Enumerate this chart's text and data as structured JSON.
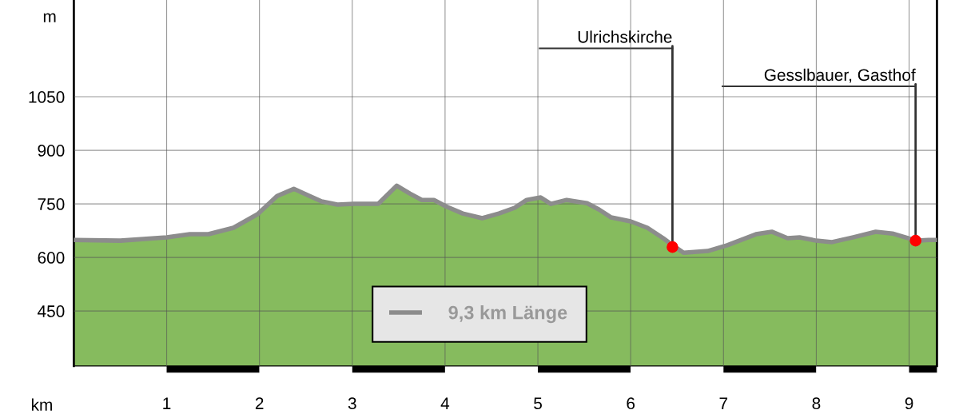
{
  "chart_data": {
    "type": "area",
    "xlabel": "km",
    "ylabel": "m",
    "xlim": [
      0,
      9.3
    ],
    "xticks": [
      {
        "value": 0,
        "label": null
      },
      1,
      2,
      3,
      4,
      5,
      6,
      7,
      8,
      9
    ],
    "ylim": [
      296,
      1321
    ],
    "yticks": [
      450,
      600,
      750,
      900,
      1050
    ],
    "grid": true,
    "legend": "bottom",
    "marker": "none",
    "line_style": "solid",
    "series": [
      {
        "name": "9,3 km Länge",
        "color": "#8c8c8c",
        "x": [
          0,
          0.5,
          1.0,
          1.25,
          1.45,
          1.72,
          1.98,
          2.19,
          2.37,
          2.54,
          2.67,
          2.84,
          3.02,
          3.28,
          3.48,
          3.62,
          3.75,
          3.88,
          4.01,
          4.19,
          4.4,
          4.58,
          4.75,
          4.88,
          5.03,
          5.14,
          5.31,
          5.53,
          5.66,
          5.79,
          6.0,
          6.18,
          6.35,
          6.48,
          6.57,
          6.83,
          7.04,
          7.17,
          7.35,
          7.52,
          7.69,
          7.82,
          8.0,
          8.17,
          8.39,
          8.64,
          8.82,
          9.08,
          9.21,
          9.3
        ],
        "values": [
          649,
          647,
          656,
          665,
          665,
          683,
          721,
          772,
          792,
          772,
          757,
          748,
          750,
          750,
          801,
          779,
          761,
          761,
          743,
          723,
          710,
          723,
          739,
          761,
          768,
          750,
          761,
          752,
          734,
          712,
          701,
          683,
          654,
          629,
          613,
          618,
          634,
          647,
          665,
          672,
          654,
          656,
          647,
          643,
          656,
          672,
          667,
          647,
          649,
          649
        ]
      },
      {
        "type": "scatter",
        "color": "#ff0000",
        "marker": "circle",
        "x": [
          6.45,
          9.07
        ],
        "values": [
          629,
          647
        ]
      }
    ],
    "annotations": [
      {
        "text": "Ulrichskirche",
        "x": 6.45,
        "y": 629
      },
      {
        "text": "Gesslbauer, Gasthof",
        "x": 9.07,
        "y": 647
      }
    ]
  }
}
